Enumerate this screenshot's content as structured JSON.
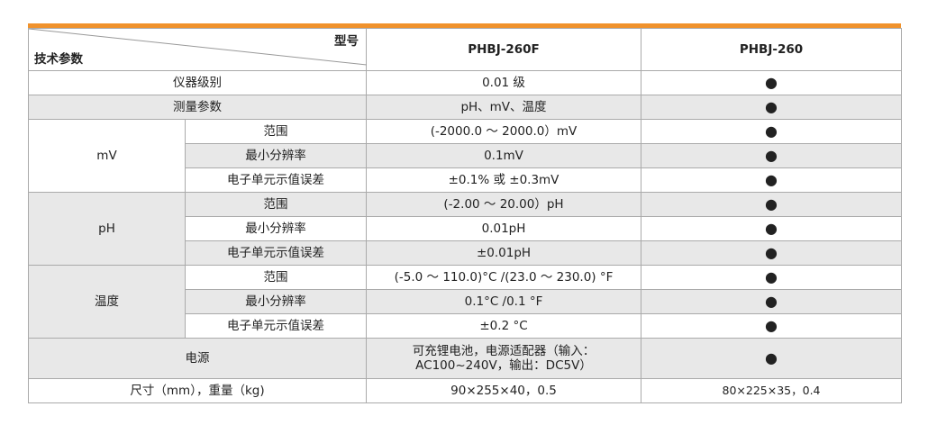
{
  "header": {
    "corner_top": "型号",
    "corner_bottom": "技术参数",
    "models": [
      "PHBJ-260F",
      "PHBJ-260"
    ]
  },
  "rows": [
    [
      "仪器级别",
      "0.01 级",
      "●"
    ],
    [
      "测量参数",
      "pH、mV、温度",
      "●"
    ]
  ],
  "groups": [
    {
      "name": "mV",
      "items": [
        [
          "范围",
          "(-2000.0 ～ 2000.0）mV",
          "●"
        ],
        [
          "最小分辨率",
          "0.1mV",
          "●"
        ],
        [
          "电子单元示值误差",
          "±0.1% 或 ±0.3mV",
          "●"
        ]
      ]
    },
    {
      "name": "pH",
      "items": [
        [
          "范围",
          "(-2.00 ～ 20.00）pH",
          "●"
        ],
        [
          "最小分辨率",
          "0.01pH",
          "●"
        ],
        [
          "电子单元示值误差",
          "±0.01pH",
          "●"
        ]
      ]
    },
    {
      "name": "温度",
      "items": [
        [
          "范围",
          "(-5.0 ～ 110.0)°C /(23.0 ～ 230.0) °F",
          "●"
        ],
        [
          "最小分辨率",
          "0.1°C /0.1 °F",
          "●"
        ],
        [
          "电子单元示值误差",
          "±0.2 °C",
          "●"
        ]
      ]
    }
  ],
  "power": {
    "label": "电源",
    "lines": [
      "可充锂电池，电源适配器（输入：",
      "AC100~240V，输出：DC5V）"
    ],
    "value": "●"
  },
  "size": {
    "label": "尺寸（mm），重量（kg)",
    "values": [
      "90×255×40，0.5",
      "80×225×35，0.4"
    ]
  }
}
